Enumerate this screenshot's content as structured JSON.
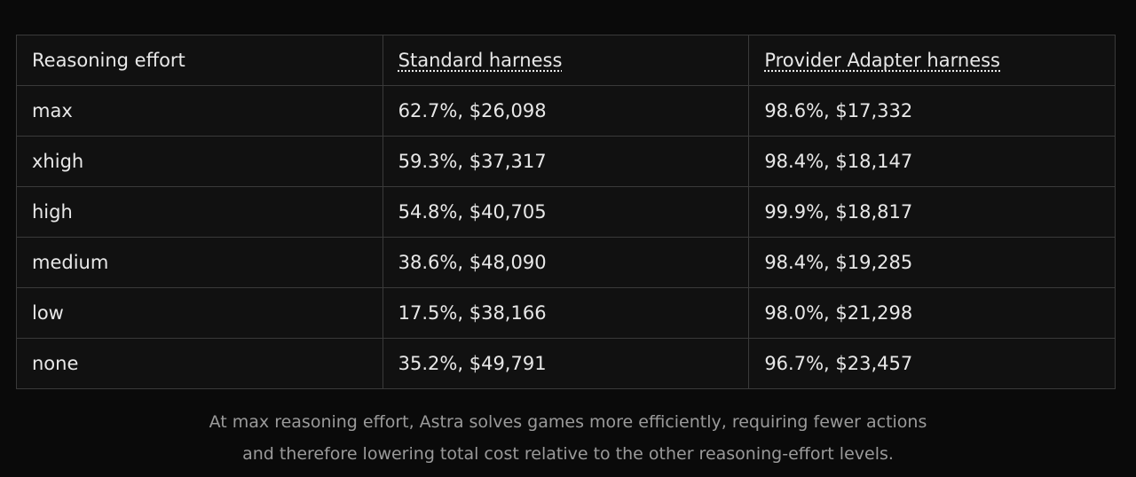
{
  "table": {
    "headers": [
      "Reasoning effort",
      "Standard harness",
      "Provider Adapter harness"
    ],
    "rows": [
      [
        "max",
        "62.7%, $26,098",
        "98.6%, $17,332"
      ],
      [
        "xhigh",
        "59.3%, $37,317",
        "98.4%, $18,147"
      ],
      [
        "high",
        "54.8%, $40,705",
        "99.9%, $18,817"
      ],
      [
        "medium",
        "38.6%, $48,090",
        "98.4%, $19,285"
      ],
      [
        "low",
        "17.5%, $38,166",
        "98.0%, $21,298"
      ],
      [
        "none",
        "35.2%, $49,791",
        "96.7%, $23,457"
      ]
    ]
  },
  "caption": {
    "lines": [
      "At max reasoning effort, Astra solves games more efficiently, requiring fewer actions",
      "and therefore lowering total cost relative to the other reasoning-effort levels."
    ]
  }
}
